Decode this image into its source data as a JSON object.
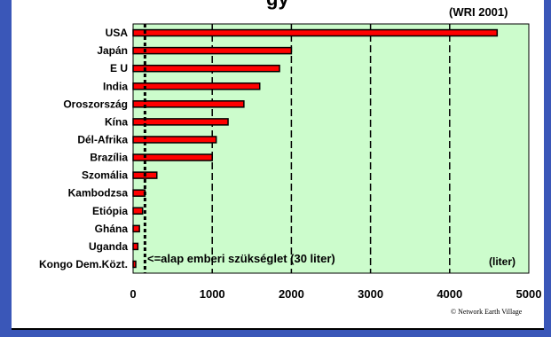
{
  "chart_data": {
    "type": "bar",
    "orientation": "horizontal",
    "source": "(WRI 2001)",
    "unit_label": "(liter)",
    "annotation": "<=alap emberi szükséglet (30 liter)",
    "reference_value": 150,
    "credit": "© Network Earth Village",
    "categories": [
      "USA",
      "Japán",
      "E U",
      "India",
      "Oroszország",
      "Kína",
      "Dél-Afrika",
      "Brazília",
      "Szomália",
      "Kambodzsa",
      "Etiópia",
      "Ghána",
      "Uganda",
      "Kongo Dem.Közt."
    ],
    "values": [
      4600,
      2000,
      1850,
      1600,
      1400,
      1200,
      1050,
      1000,
      300,
      150,
      120,
      80,
      60,
      10
    ],
    "xlim": [
      0,
      5000
    ],
    "xticks": [
      0,
      1000,
      2000,
      3000,
      4000,
      5000
    ],
    "grid": "vertical dashed",
    "colors": {
      "plot_bg": "#ccfccc",
      "bar_fill": "#ff0000",
      "bar_edge": "#000000",
      "frame_accent": "#3a57b8"
    }
  },
  "title_fragment": "gy"
}
